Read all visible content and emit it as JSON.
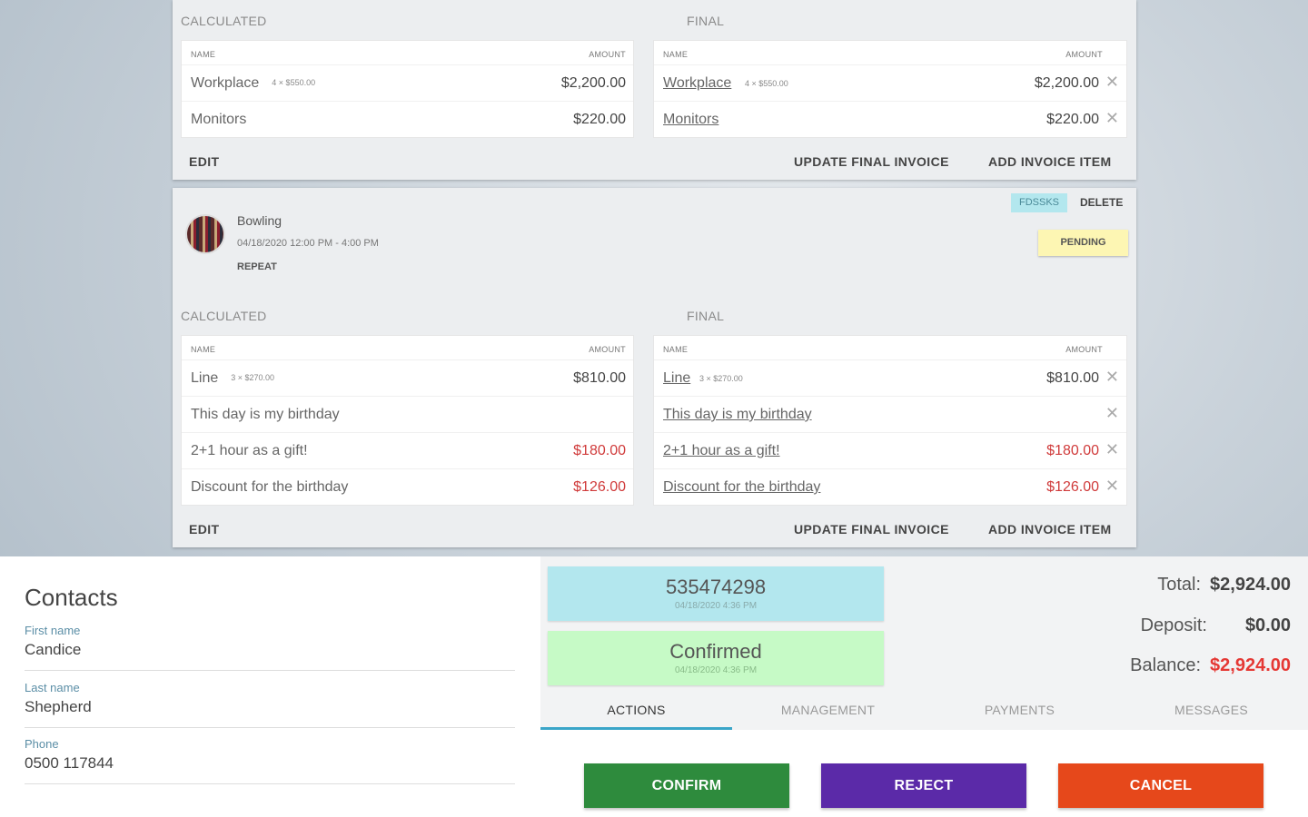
{
  "invoice1": {
    "calculated_label": "CALCULATED",
    "final_label": "FINAL",
    "col_name": "NAME",
    "col_amount": "AMOUNT",
    "calculated_rows": [
      {
        "name": "Workplace",
        "qty": "4 × $550.00",
        "amount": "$2,200.00"
      },
      {
        "name": "Monitors",
        "qty": "",
        "amount": "$220.00"
      }
    ],
    "final_rows": [
      {
        "name": "Workplace",
        "qty": "4 × $550.00",
        "amount": "$2,200.00"
      },
      {
        "name": "Monitors",
        "qty": "",
        "amount": "$220.00"
      }
    ],
    "edit_label": "EDIT",
    "update_label": "UPDATE FINAL INVOICE",
    "add_label": "ADD INVOICE ITEM"
  },
  "event": {
    "title": "Bowling",
    "time": "04/18/2020 12:00 PM - 4:00 PM",
    "repeat_label": "REPEAT",
    "code": "FDSSKS",
    "delete_label": "DELETE",
    "status": "PENDING"
  },
  "invoice2": {
    "calculated_label": "CALCULATED",
    "final_label": "FINAL",
    "col_name": "NAME",
    "col_amount": "AMOUNT",
    "calculated_rows": [
      {
        "name": "Line",
        "qty": "3 × $270.00",
        "amount": "$810.00",
        "red": false
      },
      {
        "name": "This day is my birthday",
        "qty": "",
        "amount": "",
        "red": false
      },
      {
        "name": "2+1 hour as a gift!",
        "qty": "",
        "amount": "$180.00",
        "red": true
      },
      {
        "name": "Discount for the birthday",
        "qty": "",
        "amount": "$126.00",
        "red": true
      }
    ],
    "final_rows": [
      {
        "name": "Line",
        "qty": "3 × $270.00",
        "amount": "$810.00",
        "red": false
      },
      {
        "name": "This day is my birthday",
        "qty": "",
        "amount": "",
        "red": false
      },
      {
        "name": "2+1 hour as a gift!",
        "qty": "",
        "amount": "$180.00",
        "red": true
      },
      {
        "name": "Discount for the birthday",
        "qty": "",
        "amount": "$126.00",
        "red": true
      }
    ],
    "edit_label": "EDIT",
    "update_label": "UPDATE FINAL INVOICE",
    "add_label": "ADD INVOICE ITEM"
  },
  "contacts": {
    "title": "Contacts",
    "first_name_label": "First name",
    "first_name": "Candice",
    "last_name_label": "Last name",
    "last_name": "Shepherd",
    "phone_label": "Phone",
    "phone": "0500 117844"
  },
  "booking": {
    "id": "535474298",
    "id_time": "04/18/2020 4:36 PM",
    "status": "Confirmed",
    "status_time": "04/18/2020 4:36 PM"
  },
  "totals": {
    "total_label": "Total:",
    "total": "$2,924.00",
    "deposit_label": "Deposit:",
    "deposit": "$0.00",
    "balance_label": "Balance:",
    "balance": "$2,924.00"
  },
  "tabs": [
    "ACTIONS",
    "MANAGEMENT",
    "PAYMENTS",
    "MESSAGES"
  ],
  "actions": {
    "confirm": "CONFIRM",
    "reject": "REJECT",
    "cancel": "CANCEL"
  },
  "colors": {
    "confirm": "#2e8b3d",
    "reject": "#5b2aa8",
    "cancel": "#e6481b",
    "negative_amount": "#d03b3b",
    "tab_indicator": "#3aa5c8"
  },
  "icons": {
    "remove": "close-icon"
  }
}
